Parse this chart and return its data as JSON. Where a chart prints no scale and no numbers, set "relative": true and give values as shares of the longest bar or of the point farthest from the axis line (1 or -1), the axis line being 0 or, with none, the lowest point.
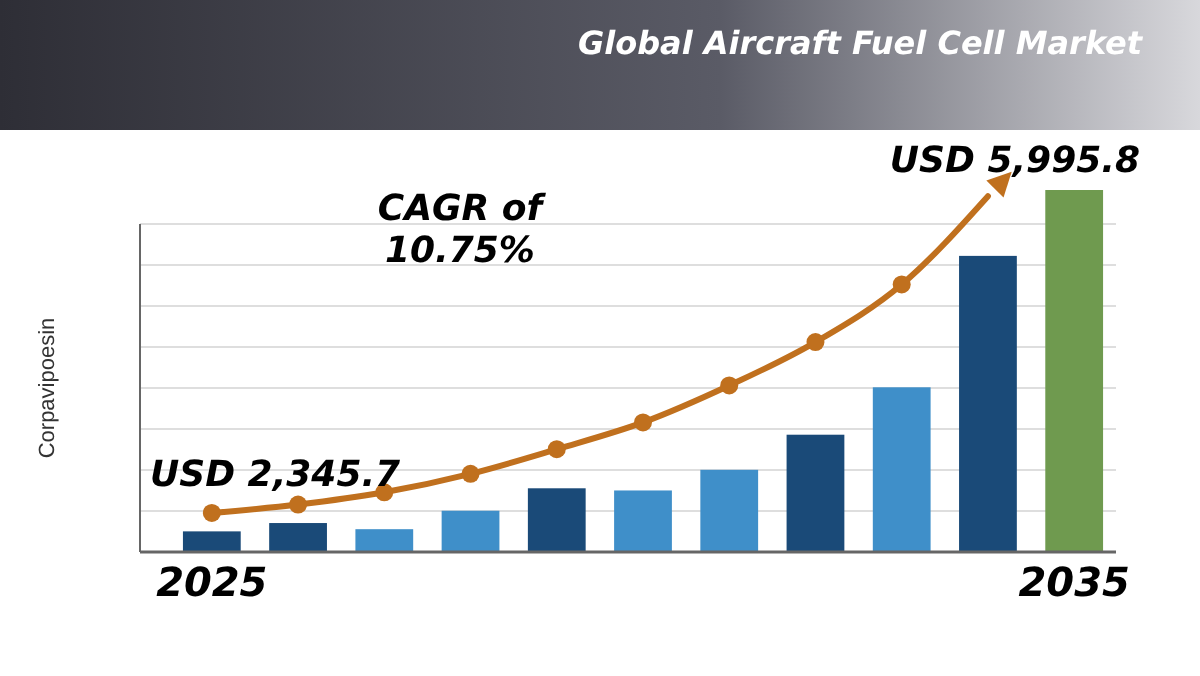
{
  "chart_data": {
    "type": "bar",
    "title": "Global Aircraft Fuel Cell Market",
    "ylabel": "Corpavipoesin",
    "categories": [
      "2025",
      null,
      null,
      null,
      null,
      null,
      null,
      null,
      null,
      null,
      "2035"
    ],
    "relative": true,
    "grid": "y",
    "series": [
      {
        "colors": [
          "#1a4a78",
          "#1a4a78",
          "#3f8fc9",
          "#3f8fc9",
          "#1a4a78",
          "#3f8fc9",
          "#3f8fc9",
          "#1a4a78",
          "#3f8fc9",
          "#1a4a78",
          "#6f9a4f"
        ],
        "values": [
          0.057,
          0.08,
          0.063,
          0.114,
          0.176,
          0.17,
          0.227,
          0.324,
          0.455,
          0.818,
          1
        ]
      },
      {
        "type": "line",
        "color": "#c0701e",
        "marker": "circle",
        "values": [
          0.108,
          0.131,
          0.165,
          0.216,
          0.284,
          0.358,
          0.46,
          0.58,
          0.739,
          0.983,
          null
        ]
      }
    ],
    "annotations": [
      "USD 2,345.7",
      "CAGR of 10.75%",
      "USD 5,995.8"
    ]
  }
}
